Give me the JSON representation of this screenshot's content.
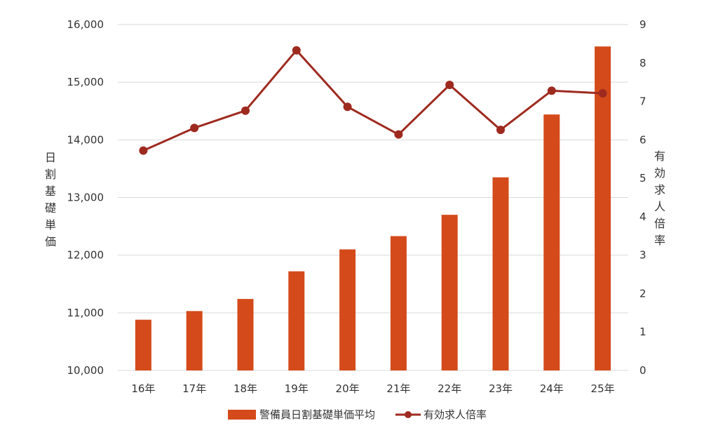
{
  "chart_data": {
    "type": "bar+line",
    "categories": [
      "16年",
      "17年",
      "18年",
      "19年",
      "20年",
      "21年",
      "22年",
      "23年",
      "24年",
      "25年"
    ],
    "series": [
      {
        "name": "警備員日割基礎単価平均",
        "type": "bar",
        "axis": "left",
        "color": "#d44a1a",
        "values": [
          10880,
          11030,
          11240,
          11720,
          12100,
          12330,
          12700,
          13350,
          14440,
          15620
        ]
      },
      {
        "name": "有効求人倍率",
        "type": "line",
        "axis": "right",
        "color": "#9e2a1f",
        "values": [
          5.72,
          6.31,
          6.76,
          8.33,
          6.86,
          6.14,
          7.43,
          6.26,
          7.28,
          7.21
        ]
      }
    ],
    "y_left": {
      "label": "日割基礎単価",
      "min": 10000,
      "max": 16000,
      "ticks": [
        "10,000",
        "11,000",
        "12,000",
        "13,000",
        "14,000",
        "15,000",
        "16,000"
      ]
    },
    "y_right": {
      "label": "有効求人倍率",
      "min": 0,
      "max": 9,
      "ticks": [
        "0",
        "1",
        "2",
        "3",
        "4",
        "5",
        "6",
        "7",
        "8",
        "9"
      ]
    },
    "grid": true,
    "legend_position": "bottom"
  }
}
